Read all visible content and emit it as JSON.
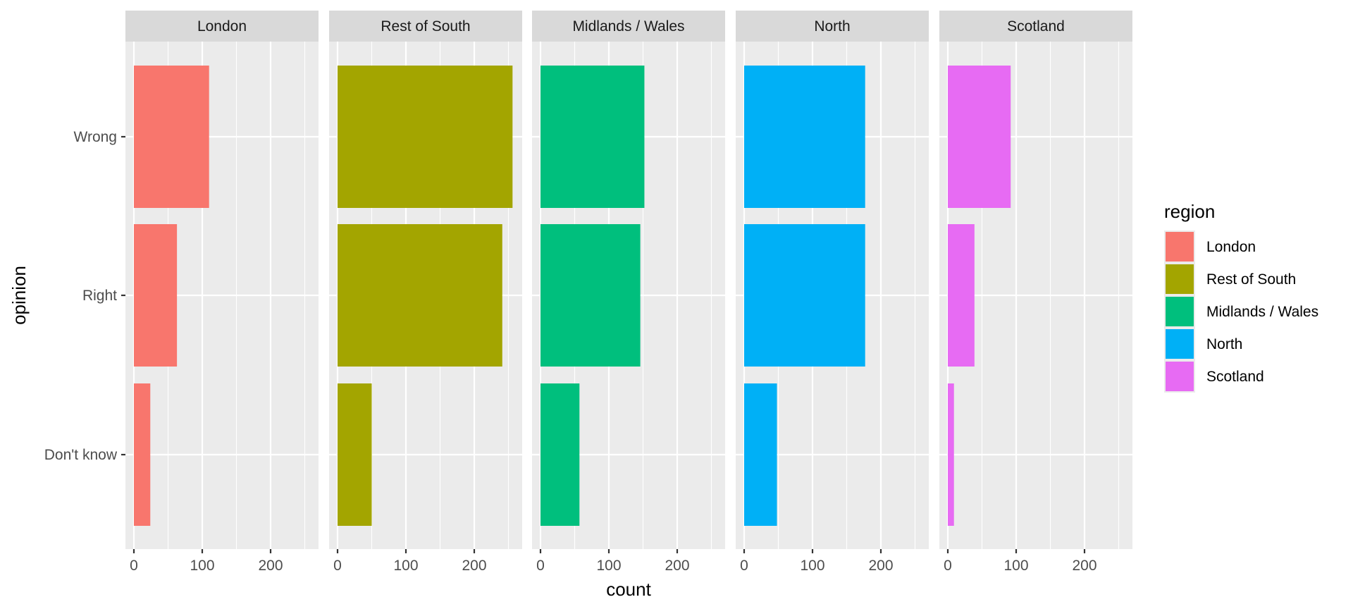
{
  "chart_data": {
    "type": "bar",
    "orientation": "horizontal",
    "faceted_by": "region",
    "title": "",
    "xlabel": "count",
    "ylabel": "opinion",
    "xlim": [
      0,
      270
    ],
    "x_ticks": [
      0,
      100,
      200
    ],
    "grid": true,
    "categories": [
      "Wrong",
      "Right",
      "Don't know"
    ],
    "facets": [
      {
        "name": "London",
        "color": "#F8766D",
        "values": [
          110,
          63,
          24
        ]
      },
      {
        "name": "Rest of South",
        "color": "#A3A500",
        "values": [
          256,
          241,
          50
        ]
      },
      {
        "name": "Midlands / Wales",
        "color": "#00BF7D",
        "values": [
          152,
          146,
          57
        ]
      },
      {
        "name": "North",
        "color": "#00B0F6",
        "values": [
          177,
          177,
          48
        ]
      },
      {
        "name": "Scotland",
        "color": "#E76BF3",
        "values": [
          92,
          39,
          9
        ]
      }
    ],
    "legend": {
      "title": "region",
      "position": "right",
      "entries": [
        "London",
        "Rest of South",
        "Midlands / Wales",
        "North",
        "Scotland"
      ]
    }
  }
}
